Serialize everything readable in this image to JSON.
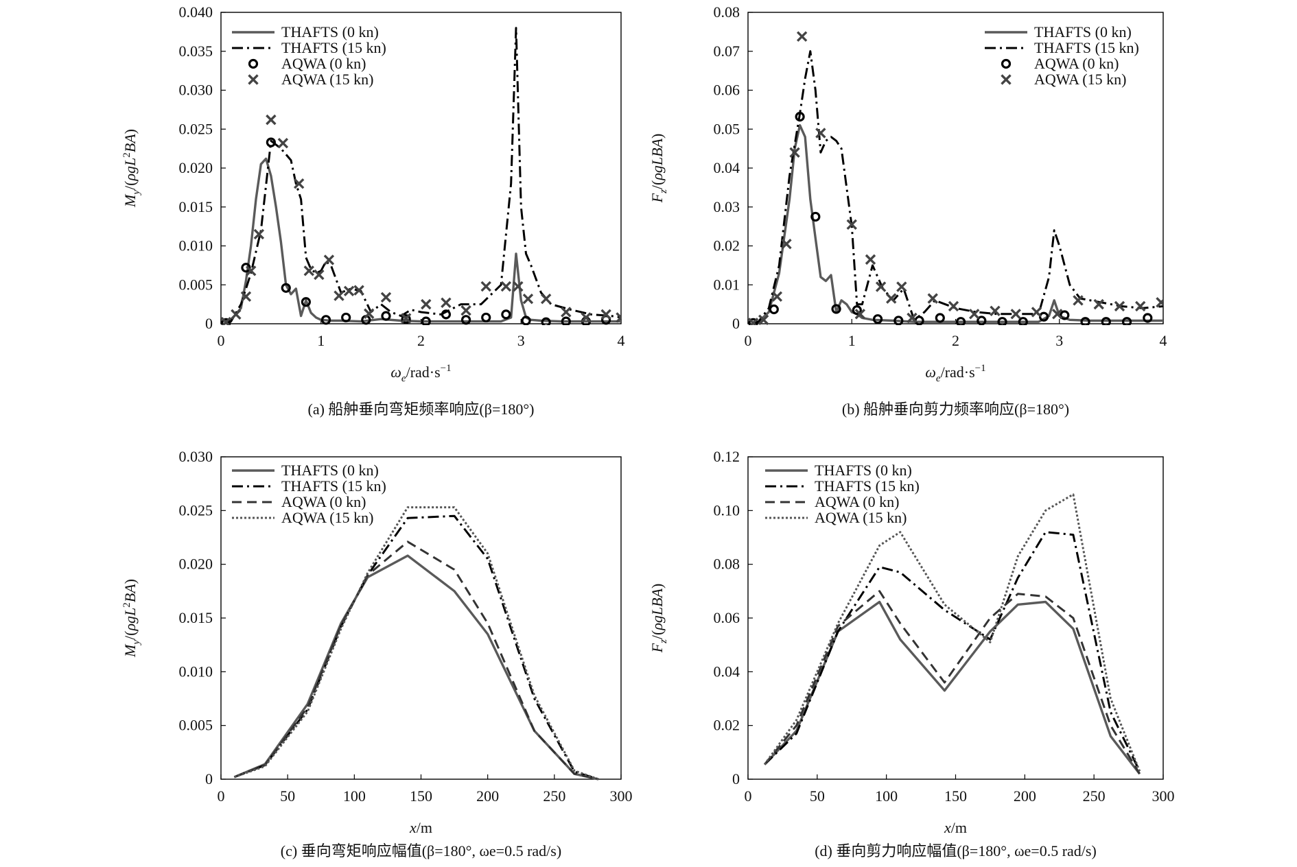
{
  "chart_data": [
    {
      "id": "a",
      "type": "line",
      "caption": "(a)  船舯垂向弯矩频率响应(β=180°)",
      "xlabel": "ωe/rad·s⁻¹",
      "ylabel": "My/(ρgL²BA)",
      "xlim": [
        0,
        4
      ],
      "ylim": [
        0,
        0.04
      ],
      "xticks": [
        0,
        1,
        2,
        3,
        4
      ],
      "xtick_labels": [
        "0",
        "1",
        "2",
        "3",
        "4"
      ],
      "yticks": [
        0,
        0.005,
        0.01,
        0.015,
        0.02,
        0.025,
        0.03,
        0.035,
        0.04
      ],
      "ytick_labels": [
        "0",
        "0.005",
        "0.010",
        "0.015",
        "0.020",
        "0.025",
        "0.030",
        "0.035",
        "0.040"
      ],
      "legend_position": "top-left",
      "series": [
        {
          "name": "THAFTS (0 kn)",
          "style": "solid",
          "color": "#5a5a5a",
          "x": [
            0.05,
            0.1,
            0.2,
            0.25,
            0.3,
            0.35,
            0.4,
            0.45,
            0.5,
            0.55,
            0.6,
            0.65,
            0.7,
            0.75,
            0.8,
            0.85,
            0.9,
            0.95,
            1.0,
            1.1,
            1.2,
            1.4,
            1.6,
            1.8,
            2.0,
            2.2,
            2.4,
            2.6,
            2.8,
            2.9,
            2.95,
            3.0,
            3.05,
            3.1,
            3.2,
            3.4,
            3.6,
            3.8,
            4.0
          ],
          "values": [
            0,
            0.0005,
            0.002,
            0.0055,
            0.01,
            0.016,
            0.0205,
            0.0212,
            0.019,
            0.015,
            0.0105,
            0.005,
            0.0038,
            0.0045,
            0.001,
            0.003,
            0.0014,
            0.0008,
            0.0005,
            0.0004,
            0.0004,
            0.0003,
            0.0006,
            0.0004,
            0.0003,
            0.0003,
            0.0003,
            0.0003,
            0.0003,
            0.0008,
            0.009,
            0.003,
            0.0008,
            0.0005,
            0.0004,
            0.0003,
            0.0003,
            0.0003,
            0.0003
          ]
        },
        {
          "name": "THAFTS (15 kn)",
          "style": "dashdot",
          "color": "#000000",
          "x": [
            0.05,
            0.1,
            0.2,
            0.3,
            0.4,
            0.5,
            0.6,
            0.7,
            0.75,
            0.8,
            0.85,
            0.9,
            0.95,
            1.0,
            1.05,
            1.1,
            1.2,
            1.3,
            1.4,
            1.5,
            1.6,
            1.7,
            1.8,
            1.9,
            2.0,
            2.2,
            2.4,
            2.6,
            2.8,
            2.9,
            2.95,
            3.0,
            3.05,
            3.1,
            3.2,
            3.3,
            3.5,
            3.7,
            3.9,
            4.0
          ],
          "values": [
            0,
            0.0003,
            0.0025,
            0.0065,
            0.012,
            0.0235,
            0.0225,
            0.021,
            0.018,
            0.016,
            0.0085,
            0.007,
            0.0065,
            0.0068,
            0.008,
            0.0075,
            0.004,
            0.0045,
            0.0042,
            0.0015,
            0.0025,
            0.0015,
            0.001,
            0.0018,
            0.0015,
            0.0012,
            0.0025,
            0.0025,
            0.005,
            0.018,
            0.038,
            0.015,
            0.009,
            0.0075,
            0.004,
            0.0025,
            0.0018,
            0.0012,
            0.001,
            0.0008
          ]
        },
        {
          "name": "AQWA (0 kn)",
          "style": "circle",
          "color": "#000000",
          "x": [
            0.05,
            0.25,
            0.5,
            0.65,
            0.85,
            1.05,
            1.25,
            1.45,
            1.65,
            1.85,
            2.05,
            2.25,
            2.45,
            2.65,
            2.85,
            3.05,
            3.25,
            3.45,
            3.65,
            3.85
          ],
          "values": [
            0.0001,
            0.0072,
            0.0233,
            0.0046,
            0.0028,
            0.0005,
            0.0008,
            0.0005,
            0.001,
            0.0006,
            0.0003,
            0.0012,
            0.0005,
            0.0008,
            0.0012,
            0.0004,
            0.0002,
            0.0003,
            0.0003,
            0.0005
          ]
        },
        {
          "name": "AQWA (15 kn)",
          "style": "cross",
          "color": "#444444",
          "x": [
            0.05,
            0.15,
            0.25,
            0.3,
            0.38,
            0.5,
            0.62,
            0.78,
            0.88,
            0.98,
            1.08,
            1.18,
            1.28,
            1.38,
            1.48,
            1.65,
            1.85,
            2.05,
            2.25,
            2.45,
            2.65,
            2.85,
            2.97,
            3.07,
            3.25,
            3.45,
            3.65,
            3.85,
            4.0
          ],
          "values": [
            0.0002,
            0.0012,
            0.0035,
            0.0068,
            0.0115,
            0.0262,
            0.0232,
            0.018,
            0.0068,
            0.0063,
            0.0082,
            0.0036,
            0.0042,
            0.0043,
            0.0013,
            0.0034,
            0.0007,
            0.0025,
            0.0027,
            0.0017,
            0.0048,
            0.0048,
            0.0048,
            0.0032,
            0.0032,
            0.0015,
            0.0008,
            0.0012,
            0.0008
          ]
        }
      ]
    },
    {
      "id": "b",
      "type": "line",
      "caption": "(b)  船舯垂向剪力频率响应(β=180°)",
      "xlabel": "ωe/rad·s⁻¹",
      "ylabel": "Fz/(ρgLBA)",
      "xlim": [
        0,
        4
      ],
      "ylim": [
        0,
        0.08
      ],
      "xticks": [
        0,
        1,
        2,
        3,
        4
      ],
      "xtick_labels": [
        "0",
        "1",
        "2",
        "3",
        "4"
      ],
      "yticks": [
        0,
        0.01,
        0.02,
        0.03,
        0.04,
        0.05,
        0.06,
        0.07,
        0.08
      ],
      "ytick_labels": [
        "0",
        "0.01",
        "0.02",
        "0.03",
        "0.04",
        "0.05",
        "0.06",
        "0.07",
        "0.08"
      ],
      "legend_position": "top-right",
      "series": [
        {
          "name": "THAFTS (0 kn)",
          "style": "solid",
          "color": "#5a5a5a",
          "x": [
            0.05,
            0.1,
            0.2,
            0.3,
            0.4,
            0.45,
            0.5,
            0.55,
            0.6,
            0.65,
            0.7,
            0.75,
            0.8,
            0.85,
            0.9,
            0.95,
            1.0,
            1.05,
            1.1,
            1.2,
            1.4,
            1.6,
            1.8,
            2.0,
            2.2,
            2.4,
            2.6,
            2.8,
            2.9,
            2.95,
            3.0,
            3.1,
            3.3,
            3.5,
            3.7,
            3.9,
            4.0
          ],
          "values": [
            0,
            0.0005,
            0.003,
            0.013,
            0.032,
            0.045,
            0.051,
            0.048,
            0.032,
            0.022,
            0.012,
            0.011,
            0.0125,
            0.003,
            0.006,
            0.005,
            0.003,
            0.0025,
            0.0015,
            0.001,
            0.0008,
            0.0005,
            0.0005,
            0.0005,
            0.0005,
            0.0005,
            0.0005,
            0.0005,
            0.002,
            0.006,
            0.002,
            0.001,
            0.0008,
            0.0008,
            0.0008,
            0.0008,
            0.0008
          ]
        },
        {
          "name": "THAFTS (15 kn)",
          "style": "dashdot",
          "color": "#000000",
          "x": [
            0.05,
            0.1,
            0.2,
            0.3,
            0.4,
            0.5,
            0.55,
            0.6,
            0.65,
            0.7,
            0.75,
            0.8,
            0.85,
            0.9,
            1.0,
            1.05,
            1.1,
            1.2,
            1.3,
            1.4,
            1.5,
            1.6,
            1.7,
            1.8,
            2.0,
            2.2,
            2.4,
            2.6,
            2.8,
            2.9,
            2.95,
            3.0,
            3.1,
            3.2,
            3.4,
            3.6,
            3.8,
            4.0
          ],
          "values": [
            0,
            0.0005,
            0.004,
            0.015,
            0.038,
            0.054,
            0.063,
            0.07,
            0.06,
            0.044,
            0.047,
            0.048,
            0.047,
            0.045,
            0.025,
            0.005,
            0.005,
            0.015,
            0.009,
            0.006,
            0.009,
            0.001,
            0.003,
            0.006,
            0.004,
            0.003,
            0.0025,
            0.0025,
            0.0025,
            0.012,
            0.024,
            0.02,
            0.01,
            0.0065,
            0.0055,
            0.0045,
            0.004,
            0.0045
          ]
        },
        {
          "name": "AQWA (0 kn)",
          "style": "circle",
          "color": "#000000",
          "x": [
            0.05,
            0.25,
            0.5,
            0.65,
            0.85,
            1.05,
            1.25,
            1.45,
            1.65,
            1.85,
            2.05,
            2.25,
            2.45,
            2.65,
            2.85,
            3.05,
            3.25,
            3.45,
            3.65,
            3.85
          ],
          "values": [
            0.0002,
            0.0037,
            0.0532,
            0.0275,
            0.0038,
            0.0035,
            0.0012,
            0.0008,
            0.0008,
            0.0015,
            0.0005,
            0.0008,
            0.0005,
            0.0005,
            0.0018,
            0.0022,
            0.0005,
            0.0005,
            0.0005,
            0.0015
          ]
        },
        {
          "name": "AQWA (15 kn)",
          "style": "cross",
          "color": "#444444",
          "x": [
            0.05,
            0.15,
            0.28,
            0.37,
            0.45,
            0.52,
            0.7,
            1.0,
            1.08,
            1.18,
            1.28,
            1.38,
            1.48,
            1.58,
            1.78,
            1.98,
            2.18,
            2.38,
            2.58,
            2.78,
            2.98,
            3.18,
            3.38,
            3.58,
            3.78,
            3.98
          ],
          "values": [
            0.0002,
            0.001,
            0.007,
            0.0205,
            0.044,
            0.0738,
            0.049,
            0.0255,
            0.0025,
            0.0165,
            0.0095,
            0.0065,
            0.0095,
            0.0015,
            0.0065,
            0.0045,
            0.0025,
            0.0033,
            0.0025,
            0.003,
            0.0025,
            0.006,
            0.005,
            0.0045,
            0.0045,
            0.0055
          ]
        }
      ]
    },
    {
      "id": "c",
      "type": "line",
      "caption": "(c) 垂向弯矩响应幅值(β=180°, ωe=0.5 rad/s)",
      "xlabel": "x/m",
      "ylabel": "My/(ρgL²BA)",
      "xlim": [
        0,
        300
      ],
      "ylim": [
        0,
        0.03
      ],
      "xticks": [
        0,
        50,
        100,
        150,
        200,
        250,
        300
      ],
      "xtick_labels": [
        "0",
        "50",
        "100",
        "150",
        "200",
        "250",
        "300"
      ],
      "yticks": [
        0,
        0.005,
        0.01,
        0.015,
        0.02,
        0.025,
        0.03
      ],
      "ytick_labels": [
        "0",
        "0.005",
        "0.010",
        "0.015",
        "0.020",
        "0.025",
        "0.030"
      ],
      "legend_position": "top-left",
      "series": [
        {
          "name": "THAFTS (0 kn)",
          "style": "solid",
          "color": "#5a5a5a",
          "x": [
            10,
            33,
            65,
            90,
            110,
            140,
            175,
            200,
            235,
            265,
            283
          ],
          "values": [
            0.0002,
            0.0014,
            0.007,
            0.0145,
            0.0188,
            0.0208,
            0.0175,
            0.0135,
            0.0045,
            0.0005,
            0
          ]
        },
        {
          "name": "THAFTS (15 kn)",
          "style": "dashdot",
          "color": "#000000",
          "x": [
            10,
            33,
            65,
            90,
            110,
            140,
            175,
            200,
            235,
            265,
            283
          ],
          "values": [
            0.0002,
            0.0013,
            0.0065,
            0.0142,
            0.019,
            0.0243,
            0.0245,
            0.0205,
            0.0075,
            0.0007,
            0
          ]
        },
        {
          "name": "AQWA (0 kn)",
          "style": "dashed",
          "color": "#333333",
          "x": [
            10,
            33,
            65,
            90,
            110,
            140,
            175,
            200,
            235,
            265,
            283
          ],
          "values": [
            0.0002,
            0.0013,
            0.0067,
            0.0143,
            0.019,
            0.0221,
            0.0195,
            0.0145,
            0.0045,
            0.0005,
            0
          ]
        },
        {
          "name": "AQWA (15 kn)",
          "style": "dotted",
          "color": "#555555",
          "x": [
            10,
            33,
            65,
            90,
            110,
            140,
            175,
            200,
            235,
            265,
            283
          ],
          "values": [
            0.0002,
            0.0012,
            0.0063,
            0.014,
            0.0192,
            0.0253,
            0.0253,
            0.021,
            0.0078,
            0.0008,
            0
          ]
        }
      ]
    },
    {
      "id": "d",
      "type": "line",
      "caption": "(d) 垂向剪力响应幅值(β=180°, ωe=0.5 rad/s)",
      "xlabel": "x/m",
      "ylabel": "Fz/(ρgLBA)",
      "xlim": [
        0,
        300
      ],
      "ylim": [
        0,
        0.12
      ],
      "xticks": [
        0,
        50,
        100,
        150,
        200,
        250,
        300
      ],
      "xtick_labels": [
        "0",
        "50",
        "100",
        "150",
        "200",
        "250",
        "300"
      ],
      "yticks": [
        0,
        0.02,
        0.04,
        0.06,
        0.08,
        0.1,
        0.12
      ],
      "ytick_labels": [
        "0",
        "0.02",
        "0.04",
        "0.06",
        "0.08",
        "0.10",
        "0.12"
      ],
      "legend_position": "top-left",
      "series": [
        {
          "name": "THAFTS (0 kn)",
          "style": "solid",
          "color": "#5a5a5a",
          "x": [
            12,
            35,
            65,
            95,
            110,
            142,
            175,
            195,
            215,
            235,
            262,
            283
          ],
          "values": [
            0.0055,
            0.018,
            0.055,
            0.066,
            0.052,
            0.033,
            0.055,
            0.065,
            0.066,
            0.056,
            0.016,
            0.002
          ]
        },
        {
          "name": "THAFTS (15 kn)",
          "style": "dashdot",
          "color": "#000000",
          "x": [
            12,
            35,
            65,
            95,
            110,
            142,
            175,
            195,
            215,
            235,
            262,
            283
          ],
          "values": [
            0.0055,
            0.017,
            0.055,
            0.079,
            0.077,
            0.063,
            0.052,
            0.075,
            0.092,
            0.091,
            0.025,
            0.003
          ]
        },
        {
          "name": "AQWA (0 kn)",
          "style": "dashed",
          "color": "#333333",
          "x": [
            12,
            35,
            65,
            95,
            110,
            142,
            175,
            195,
            215,
            235,
            262,
            283
          ],
          "values": [
            0.0055,
            0.02,
            0.057,
            0.07,
            0.058,
            0.036,
            0.06,
            0.069,
            0.068,
            0.06,
            0.02,
            0.002
          ]
        },
        {
          "name": "AQWA (15 kn)",
          "style": "dotted",
          "color": "#555555",
          "x": [
            12,
            35,
            65,
            95,
            110,
            142,
            175,
            195,
            215,
            235,
            262,
            283
          ],
          "values": [
            0.0055,
            0.022,
            0.058,
            0.087,
            0.092,
            0.065,
            0.051,
            0.083,
            0.1,
            0.106,
            0.03,
            0.003
          ]
        }
      ]
    }
  ]
}
